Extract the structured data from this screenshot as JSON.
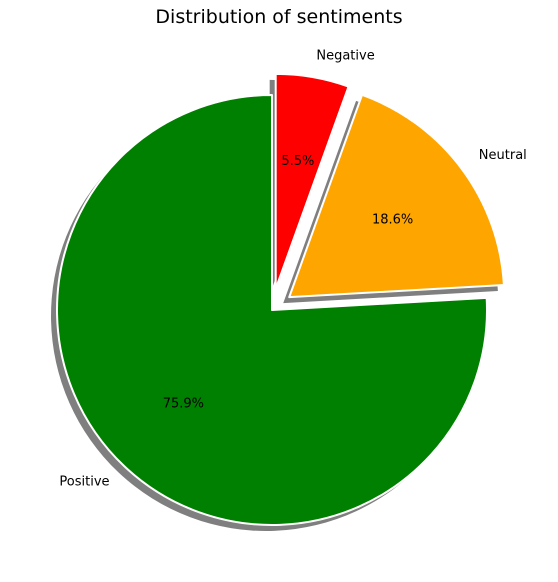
{
  "chart_data": {
    "type": "pie",
    "title": "Distribution of sentiments",
    "categories": [
      "Positive",
      "Neutral",
      "Negative"
    ],
    "values": [
      75.9,
      18.6,
      5.5
    ],
    "value_labels": [
      "75.9%",
      "18.6%",
      "5.5%"
    ],
    "colors": [
      "#008000",
      "#FFA500",
      "#FF0000"
    ],
    "explode": [
      0,
      0.1,
      0.1
    ],
    "start_angle_deg": 90,
    "direction": "counterclockwise",
    "shadow": true,
    "legend": "none"
  }
}
